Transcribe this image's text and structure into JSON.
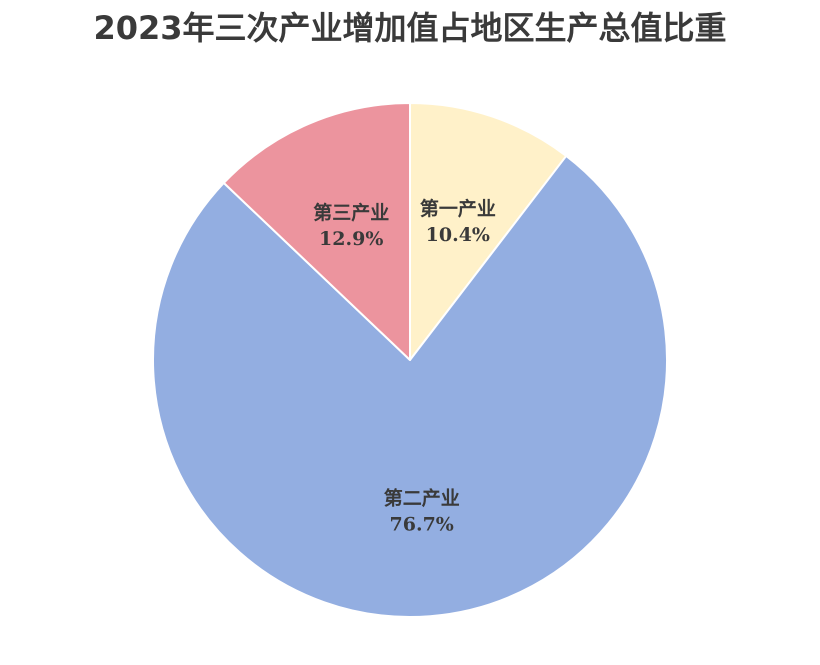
{
  "chart_data": {
    "type": "pie",
    "title": "2023年三次产业增加值占地区生产总值比重",
    "slices": [
      {
        "label": "第一产业",
        "value": 10.4,
        "value_label": "10.4%",
        "color": "#fff1c9"
      },
      {
        "label": "第二产业",
        "value": 76.7,
        "value_label": "76.7%",
        "color": "#93aee1"
      },
      {
        "label": "第三产业",
        "value": 12.9,
        "value_label": "12.9%",
        "color": "#ec949e"
      }
    ],
    "start": "12 o'clock",
    "direction": "clockwise",
    "legend": "none",
    "data_labels": "inside slices"
  }
}
